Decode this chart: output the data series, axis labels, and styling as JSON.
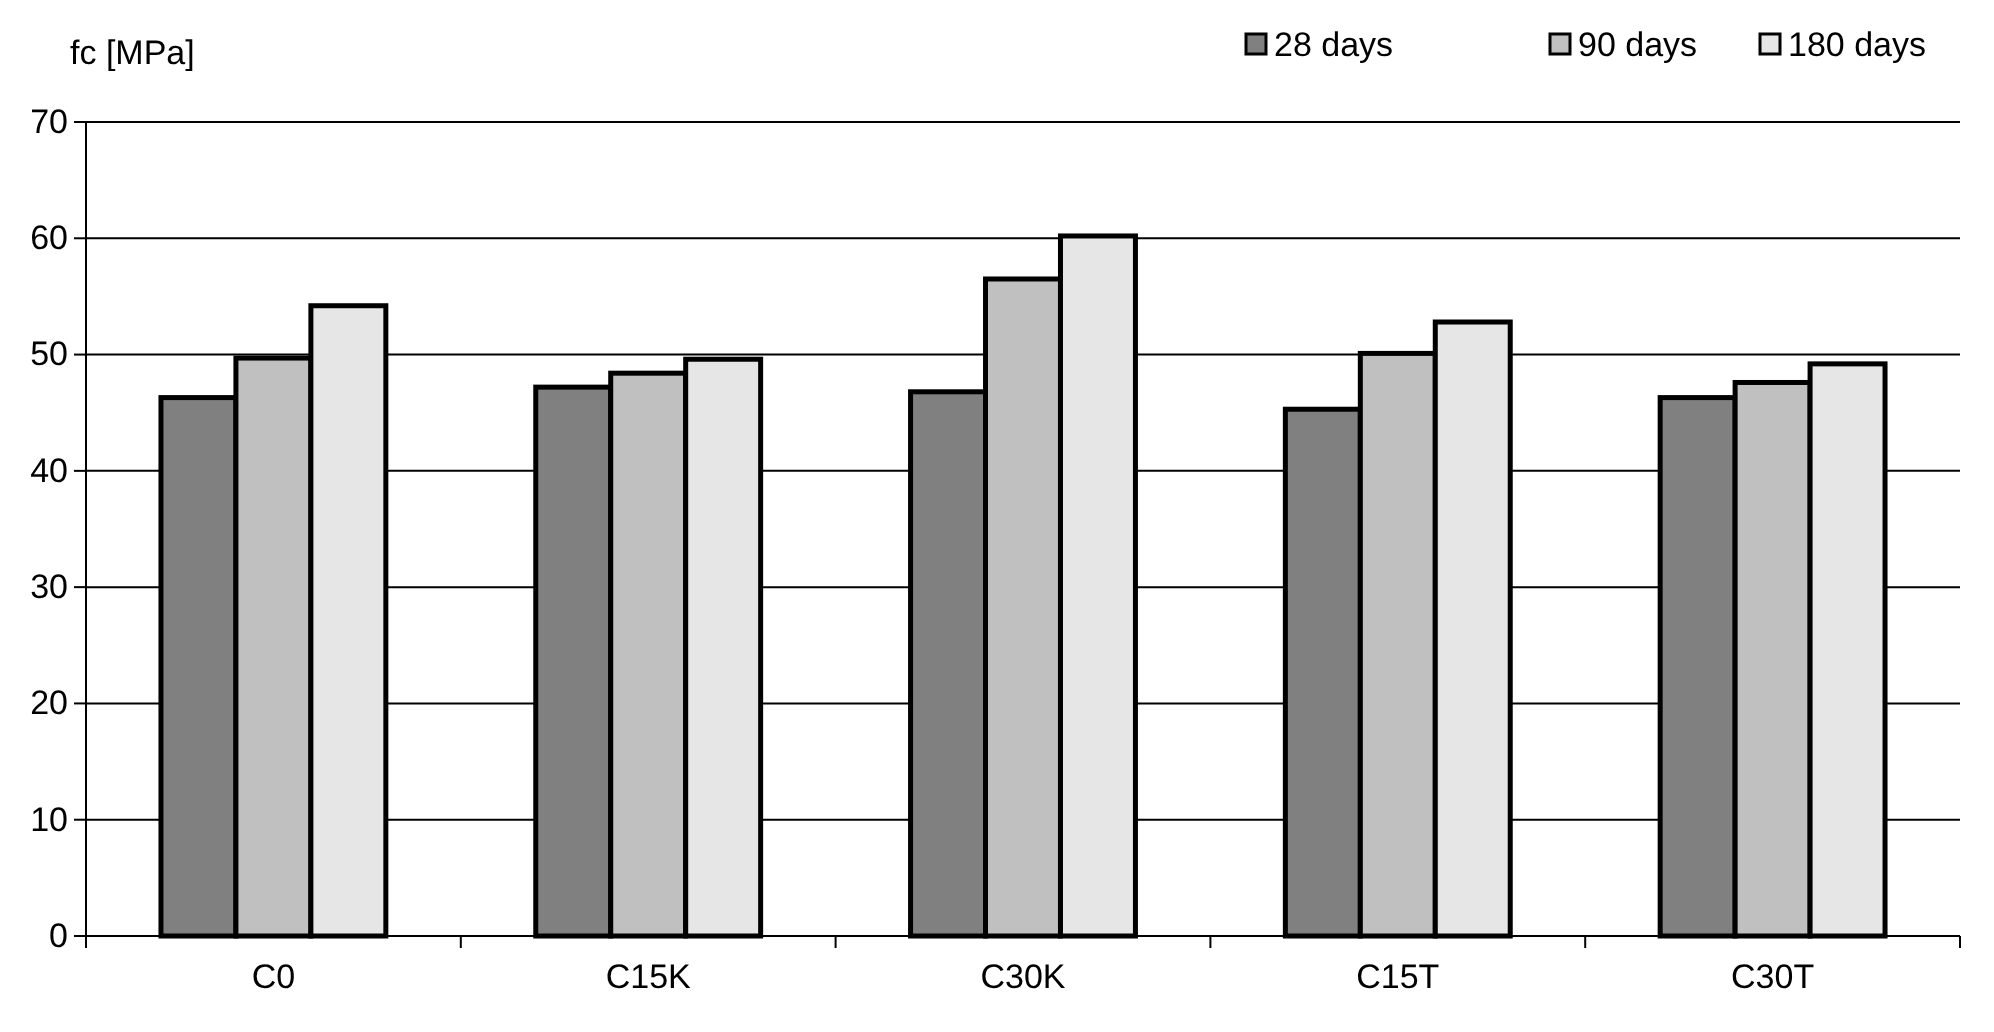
{
  "chart_data": {
    "type": "bar",
    "ylabel": "fc [MPa]",
    "categories": [
      "C0",
      "C15K",
      "C30K",
      "C15T",
      "C30T"
    ],
    "series": [
      {
        "name": "28 days",
        "color": "#808080",
        "values": [
          46.3,
          47.2,
          46.8,
          45.3,
          46.3
        ]
      },
      {
        "name": "90 days",
        "color": "#c0c0c0",
        "values": [
          49.7,
          48.4,
          56.5,
          50.1,
          47.6
        ]
      },
      {
        "name": "180 days",
        "color": "#e6e6e6",
        "values": [
          54.2,
          49.6,
          60.2,
          52.8,
          49.2
        ]
      }
    ],
    "ylim": [
      0,
      70
    ],
    "yticks": [
      0,
      10,
      20,
      30,
      40,
      50,
      60,
      70
    ],
    "grid": "y",
    "legend": "top right"
  }
}
